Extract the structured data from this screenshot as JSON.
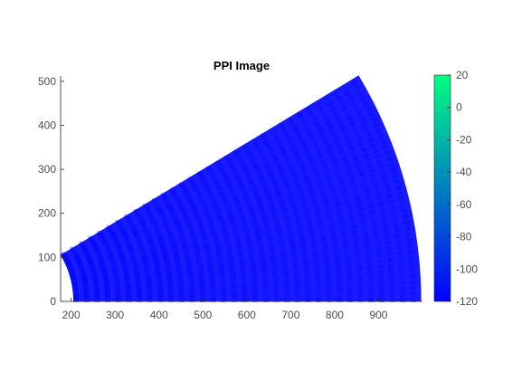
{
  "chart_data": {
    "type": "heatmap",
    "title": "PPI Image",
    "xlabel": "",
    "ylabel": "",
    "xlim": [
      176,
      1000
    ],
    "ylim": [
      0,
      512
    ],
    "x_ticks": [
      200,
      300,
      400,
      500,
      600,
      700,
      800,
      900
    ],
    "y_ticks": [
      0,
      100,
      200,
      300,
      400,
      500
    ],
    "sector": {
      "origin": [
        0,
        0
      ],
      "inner_radius": 205,
      "outer_radius": 997,
      "start_angle_deg": 0,
      "end_angle_deg": 31,
      "value_mean": -114,
      "value_min": -120,
      "value_max": -108
    },
    "colorbar": {
      "min": -120,
      "max": 20,
      "ticks": [
        20,
        0,
        -20,
        -40,
        -60,
        -80,
        -100,
        -120
      ],
      "color_low": "#0000ff",
      "color_high": "#00ff80"
    }
  }
}
